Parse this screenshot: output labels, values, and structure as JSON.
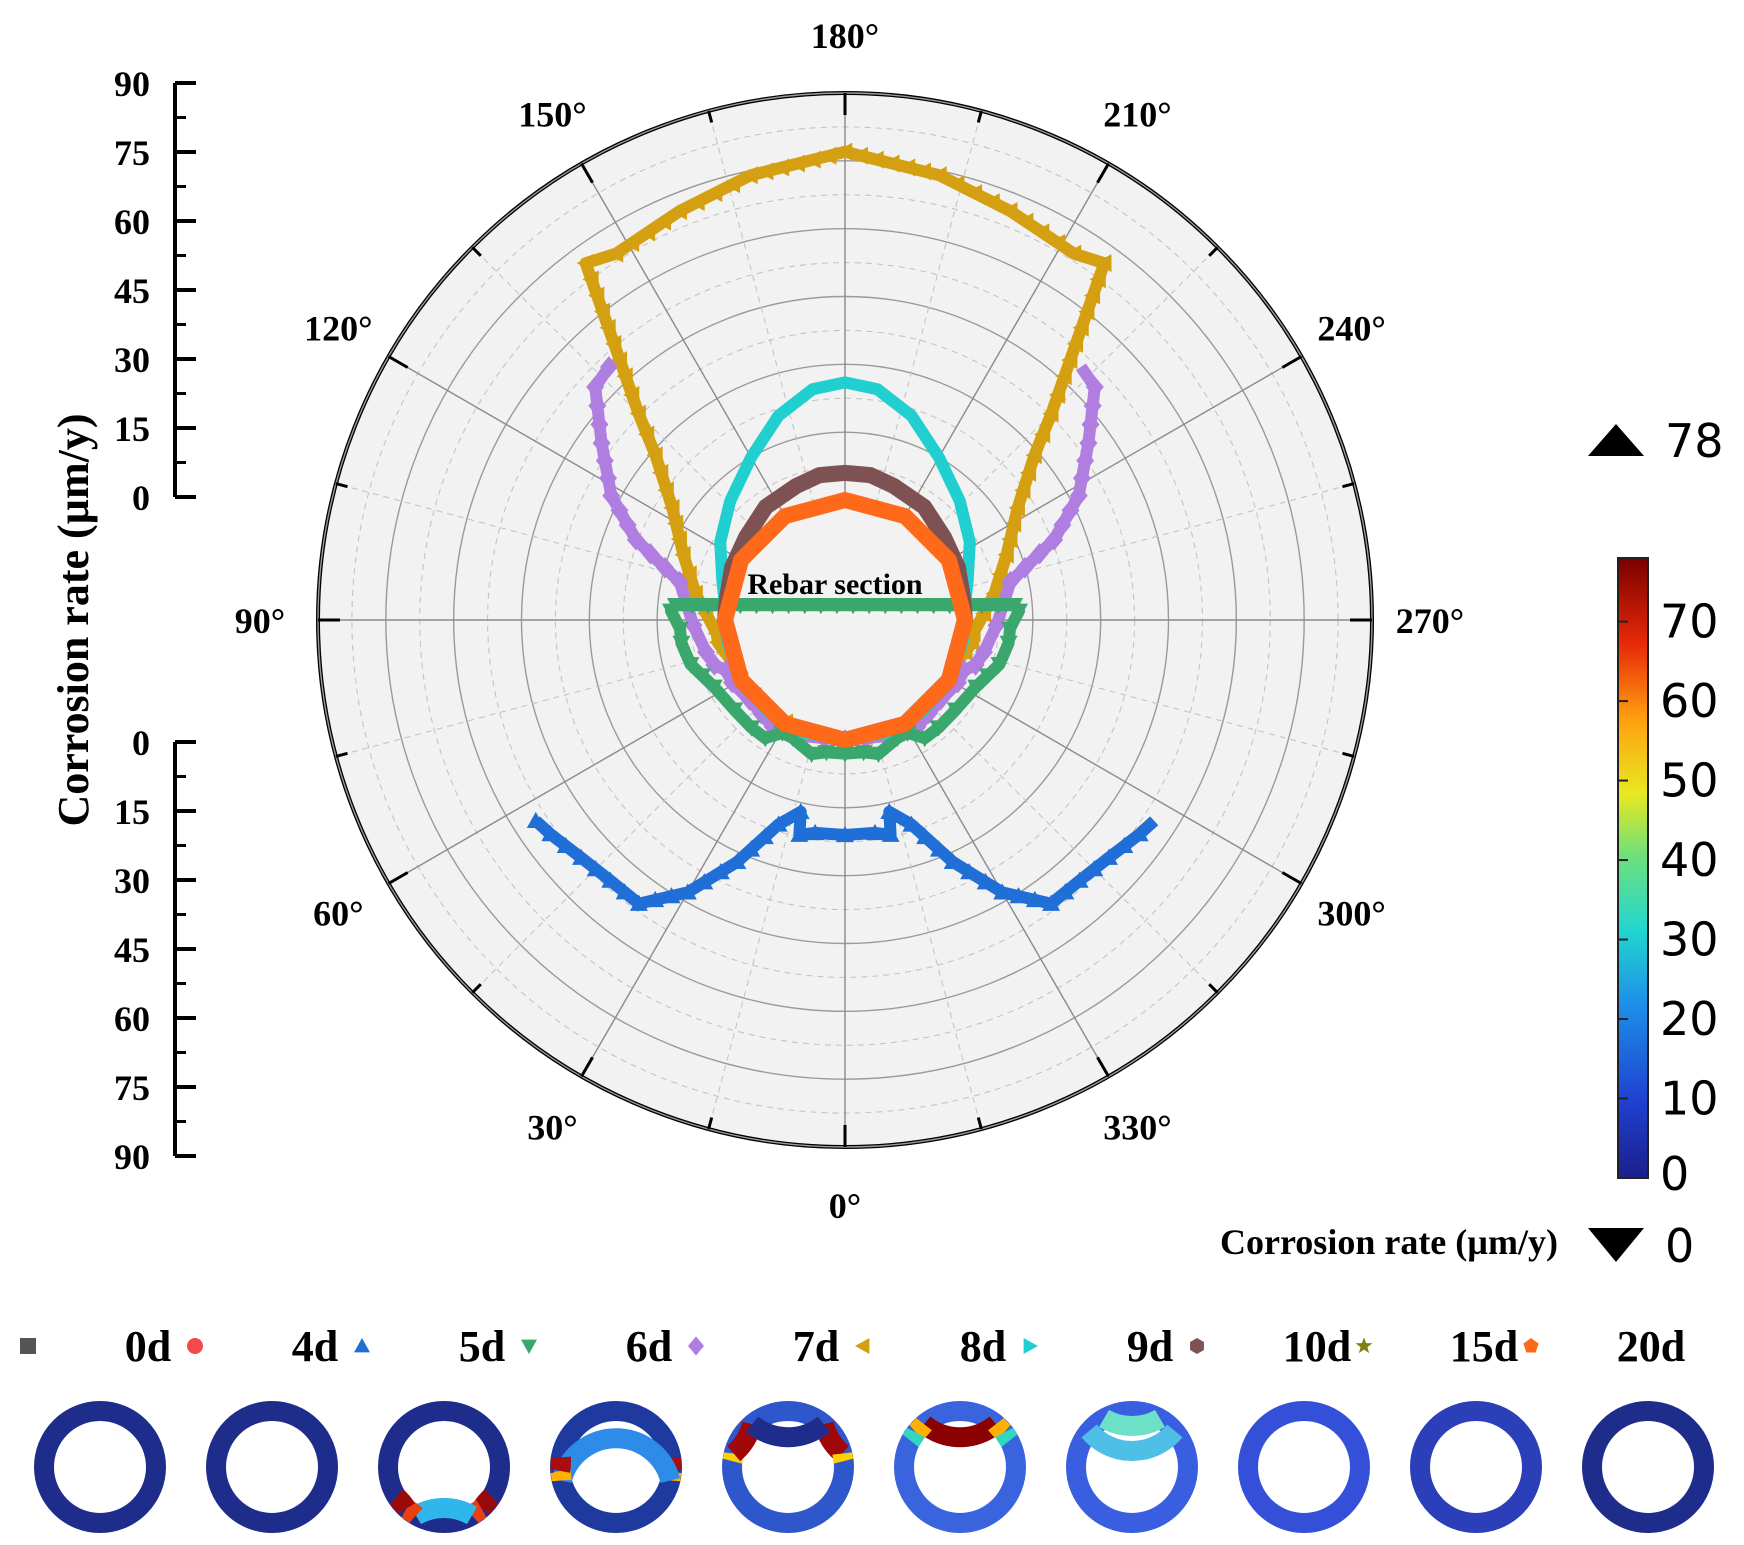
{
  "chart_data": {
    "type": "polar",
    "title": "",
    "inner_label": "Rebar section",
    "y_axis_label": "Corrosion rate (µm/y)",
    "radial_ticks_upper": [
      "90",
      "75",
      "60",
      "45",
      "30",
      "15",
      "0"
    ],
    "radial_ticks_lower": [
      "0",
      "15",
      "30",
      "45",
      "60",
      "75",
      "90"
    ],
    "radial_range": [
      0,
      90
    ],
    "angle_labels": [
      {
        "angle": 0,
        "label": "0°"
      },
      {
        "angle": 30,
        "label": "30°"
      },
      {
        "angle": 60,
        "label": "60°"
      },
      {
        "angle": 90,
        "label": "90°"
      },
      {
        "angle": 120,
        "label": "120°"
      },
      {
        "angle": 150,
        "label": "150°"
      },
      {
        "angle": 180,
        "label": "180°"
      },
      {
        "angle": 210,
        "label": "210°"
      },
      {
        "angle": 240,
        "label": "240°"
      },
      {
        "angle": 270,
        "label": "270°"
      },
      {
        "angle": 300,
        "label": "300°"
      },
      {
        "angle": 330,
        "label": "330°"
      }
    ],
    "series": [
      {
        "name": "0d",
        "color": "#555555",
        "marker": "square",
        "points": [
          [
            0,
            0
          ],
          [
            30,
            0
          ],
          [
            60,
            0
          ],
          [
            90,
            0
          ],
          [
            120,
            0
          ],
          [
            150,
            0
          ],
          [
            180,
            0
          ]
        ]
      },
      {
        "name": "4d",
        "color": "#f04a4a",
        "marker": "circle",
        "points": [
          [
            0,
            0
          ],
          [
            30,
            0
          ],
          [
            60,
            0
          ],
          [
            90,
            0
          ],
          [
            120,
            0
          ],
          [
            150,
            0
          ],
          [
            180,
            0
          ]
        ]
      },
      {
        "name": "5d",
        "color": "#1f6fd6",
        "marker": "triangle-up",
        "points": [
          [
            0,
            21
          ],
          [
            8,
            21
          ],
          [
            12,
            22
          ],
          [
            13,
            17
          ],
          [
            18,
            21
          ],
          [
            24,
            32
          ],
          [
            30,
            43
          ],
          [
            36,
            51
          ],
          [
            42,
            51
          ],
          [
            48,
            52
          ],
          [
            54,
            54
          ],
          [
            57,
            55
          ]
        ]
      },
      {
        "name": "6d",
        "color": "#3aa76d",
        "marker": "triangle-down",
        "points": [
          [
            0,
            3
          ],
          [
            8,
            3
          ],
          [
            14,
            4
          ],
          [
            24,
            2
          ],
          [
            29,
            2
          ],
          [
            34,
            5
          ],
          [
            41,
            5
          ],
          [
            51,
            5
          ],
          [
            63,
            6
          ],
          [
            74,
            9
          ],
          [
            82,
            10
          ],
          [
            87,
            10
          ],
          [
            93,
            12
          ],
          [
            95,
            11
          ]
        ]
      },
      {
        "name": "7d",
        "color": "#b07ee0",
        "marker": "diamond",
        "points": [
          [
            0,
            0
          ],
          [
            10,
            0
          ],
          [
            22,
            1
          ],
          [
            34,
            2
          ],
          [
            50,
            1
          ],
          [
            61,
            2
          ],
          [
            67,
            2
          ],
          [
            71,
            4
          ],
          [
            77,
            5
          ],
          [
            88,
            7
          ],
          [
            103,
            11
          ],
          [
            111,
            23
          ],
          [
            118,
            32
          ],
          [
            126,
            40
          ],
          [
            133,
            49
          ],
          [
            137,
            50
          ]
        ]
      },
      {
        "name": "8d",
        "color": "#d4a012",
        "marker": "triangle-left",
        "points": [
          [
            0,
            0
          ],
          [
            20,
            0
          ],
          [
            40,
            0
          ],
          [
            60,
            0
          ],
          [
            70,
            0
          ],
          [
            75,
            1
          ],
          [
            80,
            2
          ],
          [
            84,
            2
          ],
          [
            100,
            7
          ],
          [
            112,
            12
          ],
          [
            123,
            19
          ],
          [
            131,
            29
          ],
          [
            135,
            38
          ],
          [
            138,
            46
          ],
          [
            144,
            71
          ],
          [
            148,
            69
          ],
          [
            158,
            71
          ],
          [
            168,
            74
          ],
          [
            180,
            77
          ]
        ]
      },
      {
        "name": "9d",
        "color": "#22cfd0",
        "marker": "triangle-right",
        "points": [
          [
            0,
            0
          ],
          [
            20,
            0
          ],
          [
            40,
            0
          ],
          [
            60,
            0
          ],
          [
            80,
            0
          ],
          [
            95,
            0
          ],
          [
            108,
            2
          ],
          [
            122,
            6
          ],
          [
            136,
            10
          ],
          [
            150,
            15
          ],
          [
            162,
            21
          ],
          [
            172,
            25
          ],
          [
            180,
            26
          ]
        ]
      },
      {
        "name": "10d",
        "color": "#7e5252",
        "marker": "hexagon",
        "points": [
          [
            0,
            0
          ],
          [
            30,
            0
          ],
          [
            60,
            0
          ],
          [
            90,
            0
          ],
          [
            100,
            0
          ],
          [
            115,
            1
          ],
          [
            130,
            2
          ],
          [
            145,
            4
          ],
          [
            160,
            5
          ],
          [
            170,
            6
          ],
          [
            180,
            6
          ]
        ]
      },
      {
        "name": "15d",
        "color": "#7f7f12",
        "marker": "star",
        "points": [
          [
            0,
            0
          ],
          [
            30,
            0
          ],
          [
            60,
            0
          ],
          [
            90,
            0
          ],
          [
            120,
            0
          ],
          [
            150,
            0
          ],
          [
            180,
            0
          ]
        ]
      },
      {
        "name": "20d",
        "color": "#ff6a1a",
        "marker": "pentagon",
        "points": [
          [
            0,
            0
          ],
          [
            30,
            0
          ],
          [
            60,
            0
          ],
          [
            90,
            0
          ],
          [
            120,
            0
          ],
          [
            150,
            0
          ],
          [
            180,
            0
          ]
        ]
      }
    ],
    "colorbar": {
      "label": "Corrosion rate (µm/y)",
      "max_label": "78",
      "min_label": "0",
      "ticks": [
        "70",
        "60",
        "50",
        "40",
        "30",
        "20",
        "10",
        "0"
      ],
      "range": [
        0,
        78
      ]
    },
    "ring_snapshots": [
      {
        "name": "0d",
        "base": "#1e2d8c",
        "hot": []
      },
      {
        "name": "4d",
        "base": "#1e2d8c",
        "hot": []
      },
      {
        "name": "5d",
        "base": "#1e2d8c",
        "hot": [
          {
            "from": -58,
            "to": -42,
            "color": "#9b0a0a"
          },
          {
            "from": -42,
            "to": -30,
            "color": "#e84010"
          },
          {
            "from": -30,
            "to": 30,
            "color": "#2fb6ea"
          },
          {
            "from": 30,
            "to": 42,
            "color": "#e84010"
          },
          {
            "from": 42,
            "to": 58,
            "color": "#9b0a0a"
          }
        ]
      },
      {
        "name": "6d",
        "base": "#1e3a9e",
        "hot": [
          {
            "from": -100,
            "to": -86,
            "color": "#a90d0d"
          },
          {
            "from": -86,
            "to": -76,
            "color": "#ffb000"
          },
          {
            "from": -76,
            "to": 76,
            "color": "#2d8ce8"
          },
          {
            "from": 76,
            "to": 86,
            "color": "#ffb000"
          },
          {
            "from": 86,
            "to": 100,
            "color": "#a90d0d"
          }
        ]
      },
      {
        "name": "7d",
        "base": "#2f57cc",
        "hot": [
          {
            "from": -140,
            "to": -104,
            "color": "#a00808"
          },
          {
            "from": -104,
            "to": -96,
            "color": "#ffd000"
          },
          {
            "from": 96,
            "to": 104,
            "color": "#ffd000"
          },
          {
            "from": 104,
            "to": 140,
            "color": "#a00808"
          },
          {
            "from": 140,
            "to": 220,
            "color": "#1e2d8c"
          }
        ]
      },
      {
        "name": "8d",
        "base": "#3a64dd",
        "hot": [
          {
            "from": 140,
            "to": 220,
            "color": "#8b0000"
          },
          {
            "from": 128,
            "to": 140,
            "color": "#ffb000"
          },
          {
            "from": 220,
            "to": 232,
            "color": "#ffb000"
          },
          {
            "from": 118,
            "to": 128,
            "color": "#30d8c0"
          },
          {
            "from": 232,
            "to": 242,
            "color": "#30d8c0"
          }
        ]
      },
      {
        "name": "9d",
        "base": "#3a5ee0",
        "hot": [
          {
            "from": 130,
            "to": 230,
            "color": "#4ec0e8"
          },
          {
            "from": 150,
            "to": 210,
            "color": "#6de0c8"
          }
        ]
      },
      {
        "name": "10d",
        "base": "#3550d8",
        "hot": []
      },
      {
        "name": "15d",
        "base": "#2a3fb8",
        "hot": []
      },
      {
        "name": "20d",
        "base": "#1e2d8c",
        "hot": []
      }
    ]
  }
}
